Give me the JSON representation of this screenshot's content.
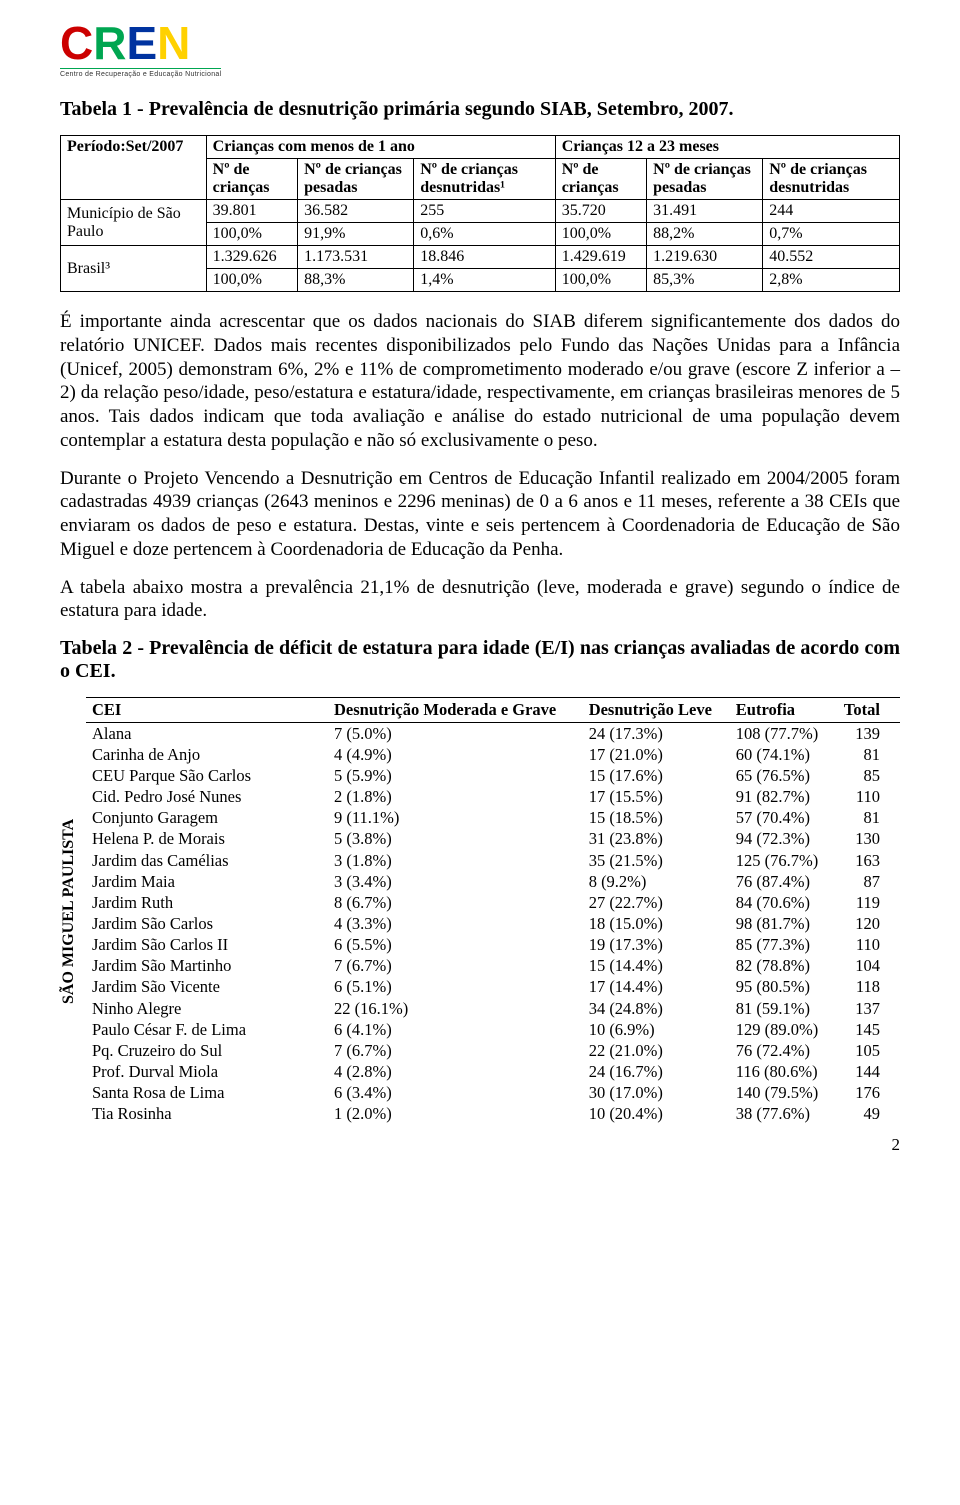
{
  "logo": {
    "letters": [
      "C",
      "R",
      "E",
      "N"
    ],
    "colors": [
      "#cc0000",
      "#00a651",
      "#0033a0",
      "#ffd100"
    ],
    "subtitle": "Centro de Recuperação e Educação Nutricional"
  },
  "table1": {
    "title": "Tabela 1 - Prevalência de desnutrição primária segundo SIAB, Setembro, 2007.",
    "head": {
      "period": "Período:Set/2007",
      "group1": "Crianças com menos de 1 ano",
      "group2": "Crianças 12 a 23 meses",
      "c1": "Nº de crianças",
      "c2": "Nº de crianças pesadas",
      "c3": "Nº de crianças desnutridas¹",
      "c4": "Nº de crianças",
      "c5": "Nº de crianças pesadas",
      "c6": "Nº de crianças desnutridas"
    },
    "rows": [
      {
        "label": "Município de São Paulo",
        "l1": [
          "39.801",
          "36.582",
          "255",
          "35.720",
          "31.491",
          "244"
        ],
        "l2": [
          "100,0%",
          "91,9%",
          "0,6%",
          "100,0%",
          "88,2%",
          "0,7%"
        ]
      },
      {
        "label": "Brasil³",
        "l1": [
          "1.329.626",
          "1.173.531",
          "18.846",
          "1.429.619",
          "1.219.630",
          "40.552"
        ],
        "l2": [
          "100,0%",
          "88,3%",
          "1,4%",
          "100,0%",
          "85,3%",
          "2,8%"
        ]
      }
    ]
  },
  "para1": "É importante ainda acrescentar que os dados nacionais do SIAB diferem significantemente dos dados do relatório UNICEF. Dados mais recentes disponibilizados pelo Fundo das Nações Unidas para a Infância (Unicef, 2005) demonstram 6%, 2% e 11% de comprometimento moderado e/ou grave (escore Z inferior a –2) da relação peso/idade, peso/estatura e estatura/idade, respectivamente, em crianças brasileiras menores de 5 anos. Tais dados indicam que toda avaliação e análise do estado nutricional de uma população devem contemplar a estatura desta população e não só exclusivamente o peso.",
  "para2": "Durante o Projeto Vencendo a Desnutrição em Centros de Educação Infantil realizado em 2004/2005 foram cadastradas 4939 crianças (2643 meninos e 2296 meninas) de 0 a 6 anos e 11 meses, referente a 38 CEIs que enviaram os dados de peso e estatura. Destas, vinte e seis pertencem à Coordenadoria de Educação de São Miguel e doze pertencem à Coordenadoria de Educação da Penha.",
  "para3": "A tabela abaixo mostra a prevalência 21,1% de desnutrição (leve, moderada e grave) segundo o índice de estatura para idade.",
  "table2": {
    "title": "Tabela 2 - Prevalência de déficit de estatura para idade (E/I) nas crianças avaliadas de acordo com o CEI.",
    "sidelabel": "SÃO MIGUEL PAULISTA",
    "columns": [
      "CEI",
      "Desnutrição Moderada e Grave",
      "Desnutrição Leve",
      "Eutrofia",
      "Total"
    ],
    "rows": [
      {
        "cei": "Alana",
        "a": "7 (5.0%)",
        "b": "24 (17.3%)",
        "c": "108 (77.7%)",
        "t": "139"
      },
      {
        "cei": "Carinha de Anjo",
        "a": "4 (4.9%)",
        "b": "17 (21.0%)",
        "c": "60 (74.1%)",
        "t": "81"
      },
      {
        "cei": "CEU Parque São Carlos",
        "a": "5 (5.9%)",
        "b": "15 (17.6%)",
        "c": "65 (76.5%)",
        "t": "85"
      },
      {
        "cei": "Cid. Pedro José Nunes",
        "a": "2 (1.8%)",
        "b": "17 (15.5%)",
        "c": "91 (82.7%)",
        "t": "110"
      },
      {
        "cei": "Conjunto Garagem",
        "a": "9 (11.1%)",
        "b": "15 (18.5%)",
        "c": "57 (70.4%)",
        "t": "81"
      },
      {
        "cei": "Helena P. de Morais",
        "a": "5 (3.8%)",
        "b": "31 (23.8%)",
        "c": "94 (72.3%)",
        "t": "130"
      },
      {
        "cei": "Jardim das Camélias",
        "a": "3 (1.8%)",
        "b": "35 (21.5%)",
        "c": "125 (76.7%)",
        "t": "163"
      },
      {
        "cei": "Jardim Maia",
        "a": "3 (3.4%)",
        "b": "8 (9.2%)",
        "c": "76 (87.4%)",
        "t": "87"
      },
      {
        "cei": "Jardim Ruth",
        "a": "8 (6.7%)",
        "b": "27 (22.7%)",
        "c": "84 (70.6%)",
        "t": "119"
      },
      {
        "cei": "Jardim São Carlos",
        "a": "4 (3.3%)",
        "b": "18 (15.0%)",
        "c": "98 (81.7%)",
        "t": "120"
      },
      {
        "cei": "Jardim São Carlos II",
        "a": "6 (5.5%)",
        "b": "19 (17.3%)",
        "c": "85 (77.3%)",
        "t": "110"
      },
      {
        "cei": "Jardim São Martinho",
        "a": "7 (6.7%)",
        "b": "15 (14.4%)",
        "c": "82 (78.8%)",
        "t": "104"
      },
      {
        "cei": "Jardim São Vicente",
        "a": "6 (5.1%)",
        "b": "17 (14.4%)",
        "c": "95 (80.5%)",
        "t": "118"
      },
      {
        "cei": "Ninho Alegre",
        "a": "22 (16.1%)",
        "b": "34 (24.8%)",
        "c": "81 (59.1%)",
        "t": "137"
      },
      {
        "cei": "Paulo César F. de Lima",
        "a": "6 (4.1%)",
        "b": "10 (6.9%)",
        "c": "129 (89.0%)",
        "t": "145"
      },
      {
        "cei": "Pq. Cruzeiro do Sul",
        "a": "7 (6.7%)",
        "b": "22 (21.0%)",
        "c": "76 (72.4%)",
        "t": "105"
      },
      {
        "cei": "Prof. Durval Miola",
        "a": "4 (2.8%)",
        "b": "24 (16.7%)",
        "c": "116 (80.6%)",
        "t": "144"
      },
      {
        "cei": "Santa Rosa de Lima",
        "a": "6 (3.4%)",
        "b": "30 (17.0%)",
        "c": "140 (79.5%)",
        "t": "176"
      },
      {
        "cei": "Tia Rosinha",
        "a": "1 (2.0%)",
        "b": "10 (20.4%)",
        "c": "38 (77.6%)",
        "t": "49"
      }
    ]
  },
  "pagenum": "2"
}
